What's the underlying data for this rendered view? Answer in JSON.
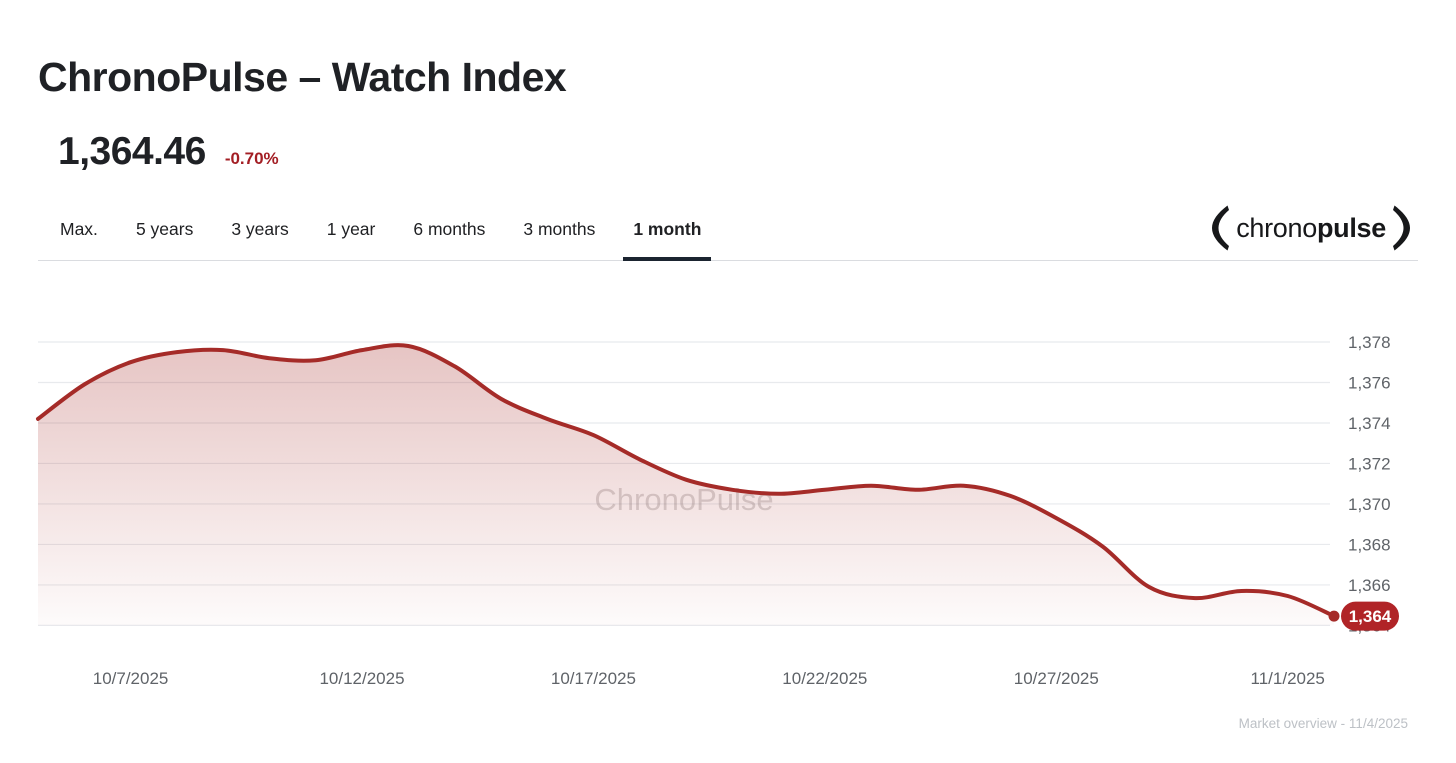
{
  "header": {
    "title": "ChronoPulse – Watch Index",
    "value": "1,364.46",
    "change": "-0.70%"
  },
  "tabs": [
    {
      "label": "Max.",
      "active": false
    },
    {
      "label": "5 years",
      "active": false
    },
    {
      "label": "3 years",
      "active": false
    },
    {
      "label": "1 year",
      "active": false
    },
    {
      "label": "6 months",
      "active": false
    },
    {
      "label": "3 months",
      "active": false
    },
    {
      "label": "1 month",
      "active": true
    }
  ],
  "logo": {
    "regular": "chrono",
    "bold": "pulse"
  },
  "watermark": "ChronoPulse",
  "footer": {
    "note": "Market overview - 11/4/2025"
  },
  "colors": {
    "line_red": "#a52b28",
    "badge_red": "#b02427",
    "change_red": "#a31e24",
    "tab_underline": "#1b2430",
    "grid": "#e8eaed",
    "axis_text": "#5f6368",
    "footer_text": "#bdc1c6",
    "watermark": "rgba(128,124,124,0.30)"
  },
  "chart_data": {
    "type": "area",
    "title": "ChronoPulse – Watch Index, 1 month",
    "series_name": "Watch Index",
    "x": [
      "10/5/2025",
      "10/6/2025",
      "10/7/2025",
      "10/8/2025",
      "10/9/2025",
      "10/10/2025",
      "10/11/2025",
      "10/12/2025",
      "10/13/2025",
      "10/14/2025",
      "10/15/2025",
      "10/16/2025",
      "10/17/2025",
      "10/18/2025",
      "10/19/2025",
      "10/20/2025",
      "10/21/2025",
      "10/22/2025",
      "10/23/2025",
      "10/24/2025",
      "10/25/2025",
      "10/26/2025",
      "10/27/2025",
      "10/28/2025",
      "10/29/2025",
      "10/30/2025",
      "10/31/2025",
      "11/1/2025",
      "11/2/2025"
    ],
    "values": [
      1374.2,
      1375.9,
      1377.0,
      1377.5,
      1377.6,
      1377.2,
      1377.1,
      1377.6,
      1377.8,
      1376.8,
      1375.2,
      1374.2,
      1373.4,
      1372.2,
      1371.2,
      1370.7,
      1370.5,
      1370.7,
      1370.9,
      1370.7,
      1370.9,
      1370.4,
      1369.3,
      1367.9,
      1365.9,
      1365.35,
      1365.7,
      1365.45,
      1364.46
    ],
    "last_value": 1364.46,
    "end_label": "1,364",
    "ylim": [
      1363.6,
      1378.6
    ],
    "y_ticks": [
      1364,
      1366,
      1368,
      1370,
      1372,
      1374,
      1376,
      1378
    ],
    "x_tick_labels": [
      {
        "index": 2,
        "label": "10/7/2025"
      },
      {
        "index": 7,
        "label": "10/12/2025"
      },
      {
        "index": 12,
        "label": "10/17/2025"
      },
      {
        "index": 17,
        "label": "10/22/2025"
      },
      {
        "index": 22,
        "label": "10/27/2025"
      },
      {
        "index": 27,
        "label": "11/1/2025"
      }
    ],
    "grid": true,
    "legend": false
  }
}
